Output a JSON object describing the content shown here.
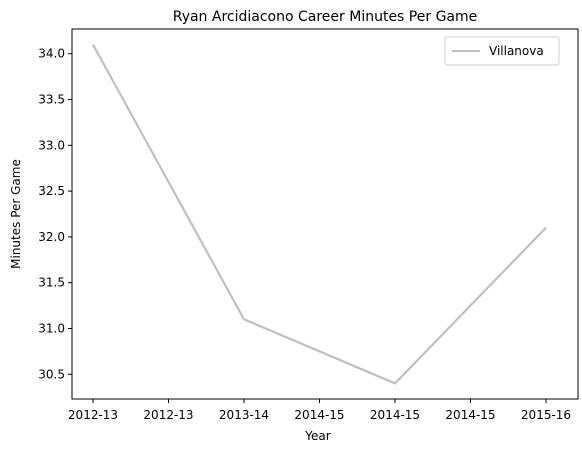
{
  "chart_data": {
    "type": "line",
    "title": "Ryan Arcidiacono Career Minutes Per Game",
    "xlabel": "Year",
    "ylabel": "Minutes Per Game",
    "xticklabels": [
      "2012-13",
      "2012-13",
      "2013-14",
      "2014-15",
      "2014-15",
      "2014-15",
      "2015-16"
    ],
    "x": [
      "2012-13",
      "2013-14",
      "2014-15",
      "2015-16"
    ],
    "series": [
      {
        "name": "Villanova",
        "values": [
          34.1,
          31.1,
          30.4,
          32.1
        ],
        "color": "#bfbfbf"
      }
    ],
    "yticks": [
      30.5,
      31.0,
      31.5,
      32.0,
      32.5,
      33.0,
      33.5,
      34.0
    ],
    "yticklabels": [
      "30.5",
      "31.0",
      "31.5",
      "32.0",
      "32.5",
      "33.0",
      "33.5",
      "34.0"
    ],
    "ylim": [
      30.23,
      34.27
    ],
    "grid": false,
    "legend_position": "top-right"
  }
}
